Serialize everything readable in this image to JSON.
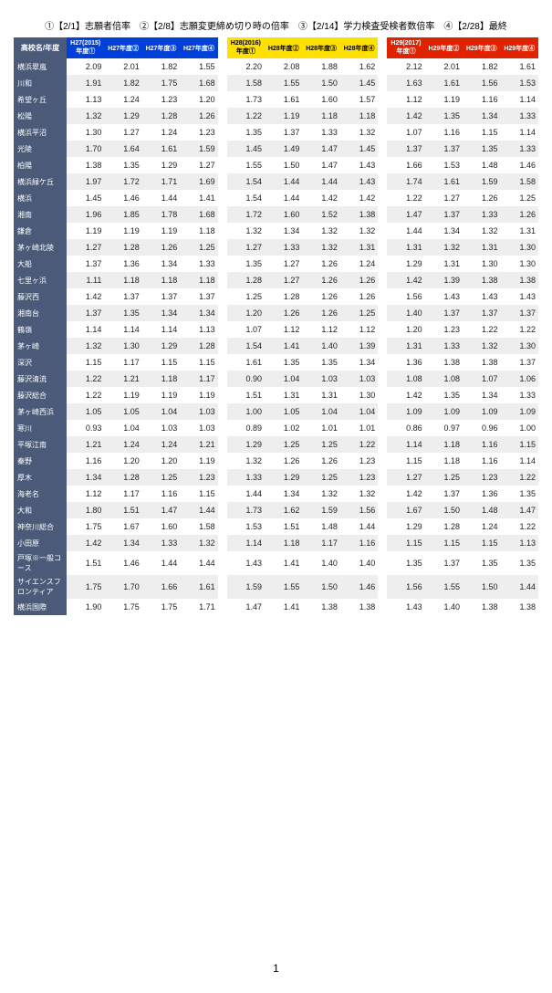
{
  "caption": "①【2/1】志願者倍率　②【2/8】志願変更締め切り時の倍率　③【2/14】学力検査受検者数倍率　④【2/28】最終",
  "header": {
    "school": "高校名/年度",
    "groups": [
      {
        "cls": "h27",
        "cols": [
          "H27(2015)年度①",
          "H27年度②",
          "H27年度③",
          "H27年度④"
        ]
      },
      {
        "cls": "h28",
        "cols": [
          "H28(2016)年度①",
          "H28年度②",
          "H28年度③",
          "H28年度④"
        ]
      },
      {
        "cls": "h29",
        "cols": [
          "H29(2017)年度①",
          "H29年度②",
          "H29年度③",
          "H29年度④"
        ]
      }
    ]
  },
  "rows": [
    {
      "n": "横浜翠嵐",
      "v": [
        "2.09",
        "2.01",
        "1.82",
        "1.55",
        "2.20",
        "2.08",
        "1.88",
        "1.62",
        "2.12",
        "2.01",
        "1.82",
        "1.61"
      ]
    },
    {
      "n": "川和",
      "v": [
        "1.91",
        "1.82",
        "1.75",
        "1.68",
        "1.58",
        "1.55",
        "1.50",
        "1.45",
        "1.63",
        "1.61",
        "1.56",
        "1.53"
      ]
    },
    {
      "n": "希望ヶ丘",
      "v": [
        "1.13",
        "1.24",
        "1.23",
        "1.20",
        "1.73",
        "1.61",
        "1.60",
        "1.57",
        "1.12",
        "1.19",
        "1.16",
        "1.14"
      ]
    },
    {
      "n": "松陽",
      "v": [
        "1.32",
        "1.29",
        "1.28",
        "1.26",
        "1.22",
        "1.19",
        "1.18",
        "1.18",
        "1.42",
        "1.35",
        "1.34",
        "1.33"
      ]
    },
    {
      "n": "横浜平沼",
      "v": [
        "1.30",
        "1.27",
        "1.24",
        "1.23",
        "1.35",
        "1.37",
        "1.33",
        "1.32",
        "1.07",
        "1.16",
        "1.15",
        "1.14"
      ]
    },
    {
      "n": "光陵",
      "v": [
        "1.70",
        "1.64",
        "1.61",
        "1.59",
        "1.45",
        "1.49",
        "1.47",
        "1.45",
        "1.37",
        "1.37",
        "1.35",
        "1.33"
      ]
    },
    {
      "n": "柏陽",
      "v": [
        "1.38",
        "1.35",
        "1.29",
        "1.27",
        "1.55",
        "1.50",
        "1.47",
        "1.43",
        "1.66",
        "1.53",
        "1.48",
        "1.46"
      ]
    },
    {
      "n": "横浜緑ケ丘",
      "v": [
        "1.97",
        "1.72",
        "1.71",
        "1.69",
        "1.54",
        "1.44",
        "1.44",
        "1.43",
        "1.74",
        "1.61",
        "1.59",
        "1.58"
      ]
    },
    {
      "n": "横浜",
      "v": [
        "1.45",
        "1.46",
        "1.44",
        "1.41",
        "1.54",
        "1.44",
        "1.42",
        "1.42",
        "1.22",
        "1.27",
        "1.26",
        "1.25"
      ]
    },
    {
      "n": "湘南",
      "v": [
        "1.96",
        "1.85",
        "1.78",
        "1.68",
        "1.72",
        "1.60",
        "1.52",
        "1.38",
        "1.47",
        "1.37",
        "1.33",
        "1.26"
      ]
    },
    {
      "n": "鎌倉",
      "v": [
        "1.19",
        "1.19",
        "1.19",
        "1.18",
        "1.32",
        "1.34",
        "1.32",
        "1.32",
        "1.44",
        "1.34",
        "1.32",
        "1.31"
      ]
    },
    {
      "n": "茅ヶ崎北陵",
      "v": [
        "1.27",
        "1.28",
        "1.26",
        "1.25",
        "1.27",
        "1.33",
        "1.32",
        "1.31",
        "1.31",
        "1.32",
        "1.31",
        "1.30"
      ]
    },
    {
      "n": "大船",
      "v": [
        "1.37",
        "1.36",
        "1.34",
        "1.33",
        "1.35",
        "1.27",
        "1.26",
        "1.24",
        "1.29",
        "1.31",
        "1.30",
        "1.30"
      ]
    },
    {
      "n": "七里ヶ浜",
      "v": [
        "1.11",
        "1.18",
        "1.18",
        "1.18",
        "1.28",
        "1.27",
        "1.26",
        "1.26",
        "1.42",
        "1.39",
        "1.38",
        "1.38"
      ]
    },
    {
      "n": "藤沢西",
      "v": [
        "1.42",
        "1.37",
        "1.37",
        "1.37",
        "1.25",
        "1.28",
        "1.26",
        "1.26",
        "1.56",
        "1.43",
        "1.43",
        "1.43"
      ]
    },
    {
      "n": "湘南台",
      "v": [
        "1.37",
        "1.35",
        "1.34",
        "1.34",
        "1.20",
        "1.26",
        "1.26",
        "1.25",
        "1.40",
        "1.37",
        "1.37",
        "1.37"
      ]
    },
    {
      "n": "鶴嶺",
      "v": [
        "1.14",
        "1.14",
        "1.14",
        "1.13",
        "1.07",
        "1.12",
        "1.12",
        "1.12",
        "1.20",
        "1.23",
        "1.22",
        "1.22"
      ]
    },
    {
      "n": "茅ヶ崎",
      "v": [
        "1.32",
        "1.30",
        "1.29",
        "1.28",
        "1.54",
        "1.41",
        "1.40",
        "1.39",
        "1.31",
        "1.33",
        "1.32",
        "1.30"
      ]
    },
    {
      "n": "深沢",
      "v": [
        "1.15",
        "1.17",
        "1.15",
        "1.15",
        "1.61",
        "1.35",
        "1.35",
        "1.34",
        "1.36",
        "1.38",
        "1.38",
        "1.37"
      ]
    },
    {
      "n": "藤沢清流",
      "v": [
        "1.22",
        "1.21",
        "1.18",
        "1.17",
        "0.90",
        "1.04",
        "1.03",
        "1.03",
        "1.08",
        "1.08",
        "1.07",
        "1.06"
      ]
    },
    {
      "n": "藤沢総合",
      "v": [
        "1.22",
        "1.19",
        "1.19",
        "1.19",
        "1.51",
        "1.31",
        "1.31",
        "1.30",
        "1.42",
        "1.35",
        "1.34",
        "1.33"
      ]
    },
    {
      "n": "茅ヶ崎西浜",
      "v": [
        "1.05",
        "1.05",
        "1.04",
        "1.03",
        "1.00",
        "1.05",
        "1.04",
        "1.04",
        "1.09",
        "1.09",
        "1.09",
        "1.09"
      ]
    },
    {
      "n": "寒川",
      "v": [
        "0.93",
        "1.04",
        "1.03",
        "1.03",
        "0.89",
        "1.02",
        "1.01",
        "1.01",
        "0.86",
        "0.97",
        "0.96",
        "1.00"
      ]
    },
    {
      "n": "平塚江南",
      "v": [
        "1.21",
        "1.24",
        "1.24",
        "1.21",
        "1.29",
        "1.25",
        "1.25",
        "1.22",
        "1.14",
        "1.18",
        "1.16",
        "1.15"
      ]
    },
    {
      "n": "秦野",
      "v": [
        "1.16",
        "1.20",
        "1.20",
        "1.19",
        "1.32",
        "1.26",
        "1.26",
        "1.23",
        "1.15",
        "1.18",
        "1.16",
        "1.14"
      ]
    },
    {
      "n": "厚木",
      "v": [
        "1.34",
        "1.28",
        "1.25",
        "1.23",
        "1.33",
        "1.29",
        "1.25",
        "1.23",
        "1.27",
        "1.25",
        "1.23",
        "1.22"
      ]
    },
    {
      "n": "海老名",
      "v": [
        "1.12",
        "1.17",
        "1.16",
        "1.15",
        "1.44",
        "1.34",
        "1.32",
        "1.32",
        "1.42",
        "1.37",
        "1.36",
        "1.35"
      ]
    },
    {
      "n": "大和",
      "v": [
        "1.80",
        "1.51",
        "1.47",
        "1.44",
        "1.73",
        "1.62",
        "1.59",
        "1.56",
        "1.67",
        "1.50",
        "1.48",
        "1.47"
      ]
    },
    {
      "n": "神奈川総合",
      "v": [
        "1.75",
        "1.67",
        "1.60",
        "1.58",
        "1.53",
        "1.51",
        "1.48",
        "1.44",
        "1.29",
        "1.28",
        "1.24",
        "1.22"
      ]
    },
    {
      "n": "小田原",
      "v": [
        "1.42",
        "1.34",
        "1.33",
        "1.32",
        "1.14",
        "1.18",
        "1.17",
        "1.16",
        "1.15",
        "1.15",
        "1.15",
        "1.13"
      ]
    },
    {
      "n": "戸塚※一般コース",
      "v": [
        "1.51",
        "1.46",
        "1.44",
        "1.44",
        "1.43",
        "1.41",
        "1.40",
        "1.40",
        "1.35",
        "1.37",
        "1.35",
        "1.35"
      ]
    },
    {
      "n": "サイエンスフロンティア",
      "v": [
        "1.75",
        "1.70",
        "1.66",
        "1.61",
        "1.59",
        "1.55",
        "1.50",
        "1.46",
        "1.56",
        "1.55",
        "1.50",
        "1.44"
      ]
    },
    {
      "n": "横浜国際",
      "v": [
        "1.90",
        "1.75",
        "1.75",
        "1.71",
        "1.47",
        "1.41",
        "1.38",
        "1.38",
        "1.43",
        "1.40",
        "1.38",
        "1.38"
      ]
    }
  ],
  "pageNumber": "1"
}
